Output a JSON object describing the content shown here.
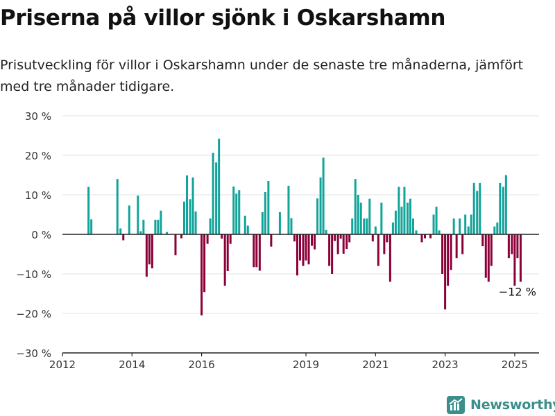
{
  "header": {
    "title": "Priserna på villor sjönk i Oskarshamn",
    "subtitle": "Prisutveckling för villor i Oskarshamn under de senaste tre månaderna, jämfört med tre månader tidigare."
  },
  "brand": {
    "name": "Newsworthy",
    "icon": "newsworthy-logo-icon"
  },
  "colors": {
    "positive": "#12a39a",
    "negative": "#8c0039",
    "grid": "#e3e3e3",
    "axis": "#222222"
  },
  "chart_data": {
    "type": "bar",
    "title": "Priserna på villor sjönk i Oskarshamn",
    "xlabel": "",
    "ylabel": "",
    "ylim": [
      -30,
      30
    ],
    "xlim": [
      2012,
      2025.7
    ],
    "yticks": [
      -30,
      -20,
      -10,
      0,
      10,
      20,
      30
    ],
    "ytick_labels": [
      "−30 %",
      "−20 %",
      "−10 %",
      "0 %",
      "10 %",
      "20 %",
      "30 %"
    ],
    "xticks": [
      2012,
      2014,
      2016,
      2019,
      2021,
      2023,
      2025
    ],
    "xtick_labels": [
      "2012",
      "2014",
      "2016",
      "2019",
      "2021",
      "2023",
      "2025"
    ],
    "grid": "horizontal",
    "annotation": {
      "text": "−12 %",
      "x": 2025.1,
      "y": -12
    },
    "points": [
      {
        "x": 2012.75,
        "y": 12
      },
      {
        "x": 2012.83,
        "y": 3.8
      },
      {
        "x": 2013.58,
        "y": 14
      },
      {
        "x": 2013.67,
        "y": 1.5
      },
      {
        "x": 2013.75,
        "y": -1.5
      },
      {
        "x": 2013.92,
        "y": 7.3
      },
      {
        "x": 2014.17,
        "y": 9.8
      },
      {
        "x": 2014.25,
        "y": 0.8
      },
      {
        "x": 2014.33,
        "y": 3.7
      },
      {
        "x": 2014.42,
        "y": -10.7
      },
      {
        "x": 2014.5,
        "y": -7.6
      },
      {
        "x": 2014.58,
        "y": -8.6
      },
      {
        "x": 2014.67,
        "y": 3.7
      },
      {
        "x": 2014.75,
        "y": 3.7
      },
      {
        "x": 2014.83,
        "y": 6
      },
      {
        "x": 2015.0,
        "y": 0.6
      },
      {
        "x": 2015.25,
        "y": -5.3
      },
      {
        "x": 2015.42,
        "y": -1
      },
      {
        "x": 2015.5,
        "y": 8.3
      },
      {
        "x": 2015.58,
        "y": 14.9
      },
      {
        "x": 2015.67,
        "y": 8.9
      },
      {
        "x": 2015.75,
        "y": 14.4
      },
      {
        "x": 2015.83,
        "y": 5.8
      },
      {
        "x": 2016.0,
        "y": -20.5
      },
      {
        "x": 2016.08,
        "y": -14.6
      },
      {
        "x": 2016.17,
        "y": -2.4
      },
      {
        "x": 2016.25,
        "y": 4
      },
      {
        "x": 2016.33,
        "y": 20.6
      },
      {
        "x": 2016.42,
        "y": 18.2
      },
      {
        "x": 2016.5,
        "y": 24.2
      },
      {
        "x": 2016.58,
        "y": -1.1
      },
      {
        "x": 2016.67,
        "y": -13
      },
      {
        "x": 2016.75,
        "y": -9.3
      },
      {
        "x": 2016.83,
        "y": -2.4
      },
      {
        "x": 2016.92,
        "y": 12.1
      },
      {
        "x": 2017.0,
        "y": 10.3
      },
      {
        "x": 2017.08,
        "y": 11.2
      },
      {
        "x": 2017.25,
        "y": 4.7
      },
      {
        "x": 2017.33,
        "y": 2.2
      },
      {
        "x": 2017.5,
        "y": -8.3
      },
      {
        "x": 2017.58,
        "y": -8.3
      },
      {
        "x": 2017.67,
        "y": -9.2
      },
      {
        "x": 2017.75,
        "y": 5.6
      },
      {
        "x": 2017.83,
        "y": 10.7
      },
      {
        "x": 2017.92,
        "y": 13.5
      },
      {
        "x": 2018.0,
        "y": -3.1
      },
      {
        "x": 2018.25,
        "y": 5.6
      },
      {
        "x": 2018.5,
        "y": 12.3
      },
      {
        "x": 2018.58,
        "y": 4.1
      },
      {
        "x": 2018.67,
        "y": -1.8
      },
      {
        "x": 2018.75,
        "y": -10.4
      },
      {
        "x": 2018.83,
        "y": -6.6
      },
      {
        "x": 2018.92,
        "y": -8
      },
      {
        "x": 2019.0,
        "y": -6.6
      },
      {
        "x": 2019.08,
        "y": -7.6
      },
      {
        "x": 2019.17,
        "y": -2.9
      },
      {
        "x": 2019.25,
        "y": -3.8
      },
      {
        "x": 2019.33,
        "y": 9.1
      },
      {
        "x": 2019.42,
        "y": 14.4
      },
      {
        "x": 2019.5,
        "y": 19.4
      },
      {
        "x": 2019.58,
        "y": 1.1
      },
      {
        "x": 2019.67,
        "y": -8
      },
      {
        "x": 2019.75,
        "y": -10
      },
      {
        "x": 2019.83,
        "y": -1.7
      },
      {
        "x": 2019.92,
        "y": -5
      },
      {
        "x": 2020.0,
        "y": -1.1
      },
      {
        "x": 2020.08,
        "y": -4.9
      },
      {
        "x": 2020.17,
        "y": -3.7
      },
      {
        "x": 2020.25,
        "y": -2
      },
      {
        "x": 2020.33,
        "y": 4
      },
      {
        "x": 2020.42,
        "y": 14
      },
      {
        "x": 2020.5,
        "y": 10
      },
      {
        "x": 2020.58,
        "y": 8
      },
      {
        "x": 2020.67,
        "y": 4
      },
      {
        "x": 2020.75,
        "y": 4
      },
      {
        "x": 2020.83,
        "y": 9
      },
      {
        "x": 2020.92,
        "y": -1.8
      },
      {
        "x": 2021.0,
        "y": 2
      },
      {
        "x": 2021.08,
        "y": -8
      },
      {
        "x": 2021.17,
        "y": 8
      },
      {
        "x": 2021.25,
        "y": -5
      },
      {
        "x": 2021.33,
        "y": -2
      },
      {
        "x": 2021.42,
        "y": -12
      },
      {
        "x": 2021.5,
        "y": 3
      },
      {
        "x": 2021.58,
        "y": 6
      },
      {
        "x": 2021.67,
        "y": 12
      },
      {
        "x": 2021.75,
        "y": 7
      },
      {
        "x": 2021.83,
        "y": 12
      },
      {
        "x": 2021.92,
        "y": 8
      },
      {
        "x": 2022.0,
        "y": 9
      },
      {
        "x": 2022.08,
        "y": 4
      },
      {
        "x": 2022.17,
        "y": 1
      },
      {
        "x": 2022.33,
        "y": -2
      },
      {
        "x": 2022.42,
        "y": -1
      },
      {
        "x": 2022.58,
        "y": -1
      },
      {
        "x": 2022.67,
        "y": 5
      },
      {
        "x": 2022.75,
        "y": 7
      },
      {
        "x": 2022.83,
        "y": 1
      },
      {
        "x": 2022.92,
        "y": -10
      },
      {
        "x": 2023.0,
        "y": -19
      },
      {
        "x": 2023.08,
        "y": -13
      },
      {
        "x": 2023.17,
        "y": -9
      },
      {
        "x": 2023.25,
        "y": 4
      },
      {
        "x": 2023.33,
        "y": -6
      },
      {
        "x": 2023.42,
        "y": 4
      },
      {
        "x": 2023.5,
        "y": -5
      },
      {
        "x": 2023.58,
        "y": 5
      },
      {
        "x": 2023.67,
        "y": 2
      },
      {
        "x": 2023.75,
        "y": 5
      },
      {
        "x": 2023.83,
        "y": 13
      },
      {
        "x": 2023.92,
        "y": 11
      },
      {
        "x": 2024.0,
        "y": 13
      },
      {
        "x": 2024.08,
        "y": -3
      },
      {
        "x": 2024.17,
        "y": -11
      },
      {
        "x": 2024.25,
        "y": -12
      },
      {
        "x": 2024.33,
        "y": -8
      },
      {
        "x": 2024.42,
        "y": 2
      },
      {
        "x": 2024.5,
        "y": 3
      },
      {
        "x": 2024.58,
        "y": 13
      },
      {
        "x": 2024.67,
        "y": 12
      },
      {
        "x": 2024.75,
        "y": 15
      },
      {
        "x": 2024.83,
        "y": -6
      },
      {
        "x": 2024.92,
        "y": -5
      },
      {
        "x": 2025.0,
        "y": -13
      },
      {
        "x": 2025.08,
        "y": -6
      },
      {
        "x": 2025.17,
        "y": -12
      }
    ]
  }
}
